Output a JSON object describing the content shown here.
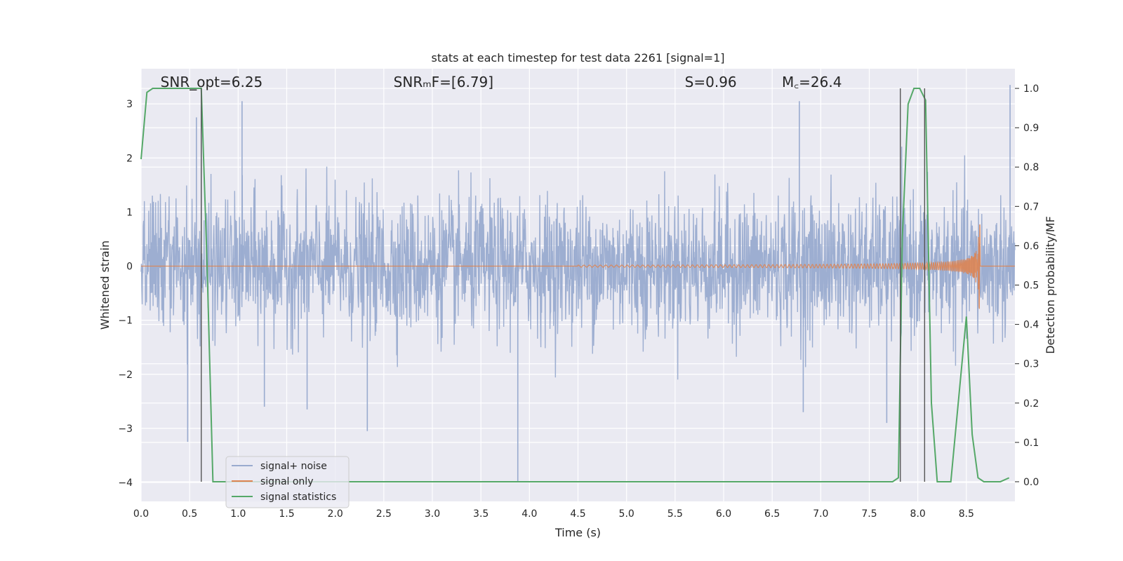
{
  "chart_data": {
    "type": "line",
    "title": "stats at each timestep for test data 2261 [signal=1]",
    "xlabel": "Time (s)",
    "ylabel": "Whitened strain",
    "y2label": "Detection probability/MF",
    "xlim": [
      0.0,
      9.0
    ],
    "ylim": [
      -4.35,
      3.65
    ],
    "y2lim": [
      -0.05,
      1.05
    ],
    "xticks": [
      0.0,
      0.5,
      1.0,
      1.5,
      2.0,
      2.5,
      3.0,
      3.5,
      4.0,
      4.5,
      5.0,
      5.5,
      6.0,
      6.5,
      7.0,
      7.5,
      8.0,
      8.5
    ],
    "xtick_labels": [
      "0.0",
      "0.5",
      "1.0",
      "1.5",
      "2.0",
      "2.5",
      "3.0",
      "3.5",
      "4.0",
      "4.5",
      "5.0",
      "5.5",
      "6.0",
      "6.5",
      "7.0",
      "7.5",
      "8.0",
      "8.5"
    ],
    "yticks": [
      -4,
      -3,
      -2,
      -1,
      0,
      1,
      2,
      3
    ],
    "ytick_labels": [
      "−4",
      "−3",
      "−2",
      "−1",
      "0",
      "1",
      "2",
      "3"
    ],
    "y2ticks": [
      0.0,
      0.1,
      0.2,
      0.3,
      0.4,
      0.5,
      0.6,
      0.7,
      0.8,
      0.9,
      1.0
    ],
    "y2tick_labels": [
      "0.0",
      "0.1",
      "0.2",
      "0.3",
      "0.4",
      "0.5",
      "0.6",
      "0.7",
      "0.8",
      "0.9",
      "1.0"
    ],
    "grid": true,
    "legend": "lower-left",
    "annotations": [
      {
        "text": "SNR_opt=6.25",
        "x": 0.2
      },
      {
        "text": "SNRₘF=[6.79]",
        "x": 2.6
      },
      {
        "text": "S=0.96",
        "x": 5.6
      },
      {
        "text": "M꜀=26.4",
        "x": 6.6
      }
    ],
    "vlines": [
      0.62,
      7.82,
      8.07
    ],
    "series": [
      {
        "name": "signal+ noise",
        "color": "#99abcf",
        "kind": "noise",
        "amplitude_envelope": 1.85,
        "spikes": [
          {
            "x": 0.48,
            "y": -3.25
          },
          {
            "x": 0.57,
            "y": 2.75
          },
          {
            "x": 0.62,
            "y": 2.95
          },
          {
            "x": 1.04,
            "y": 3.05
          },
          {
            "x": 1.27,
            "y": -2.6
          },
          {
            "x": 1.71,
            "y": -2.65
          },
          {
            "x": 2.33,
            "y": -3.05
          },
          {
            "x": 3.88,
            "y": -4.0
          },
          {
            "x": 6.78,
            "y": 3.05
          },
          {
            "x": 6.82,
            "y": -2.7
          },
          {
            "x": 7.68,
            "y": -2.9
          },
          {
            "x": 8.95,
            "y": 3.35
          }
        ]
      },
      {
        "name": "signal only",
        "color": "#dd8452",
        "kind": "chirp",
        "chirp_start": 4.5,
        "chirp_end": 8.64,
        "chirp_peak": 1.05
      },
      {
        "name": "signal statistics",
        "color": "#55a868",
        "kind": "stats",
        "x": [
          0.0,
          0.06,
          0.12,
          0.3,
          0.5,
          0.62,
          0.68,
          0.74,
          7.5,
          7.74,
          7.8,
          7.84,
          7.9,
          7.96,
          8.02,
          8.08,
          8.14,
          8.2,
          8.26,
          8.34,
          8.42,
          8.5,
          8.56,
          8.62,
          8.68,
          8.76,
          8.85,
          8.94
        ],
        "y": [
          0.82,
          0.99,
          1.0,
          1.0,
          1.0,
          1.0,
          0.55,
          0.0,
          0.0,
          0.0,
          0.01,
          0.62,
          0.96,
          1.0,
          1.0,
          0.97,
          0.2,
          0.0,
          0.0,
          0.0,
          0.21,
          0.42,
          0.12,
          0.01,
          0.0,
          0.0,
          0.0,
          0.01
        ]
      }
    ]
  }
}
